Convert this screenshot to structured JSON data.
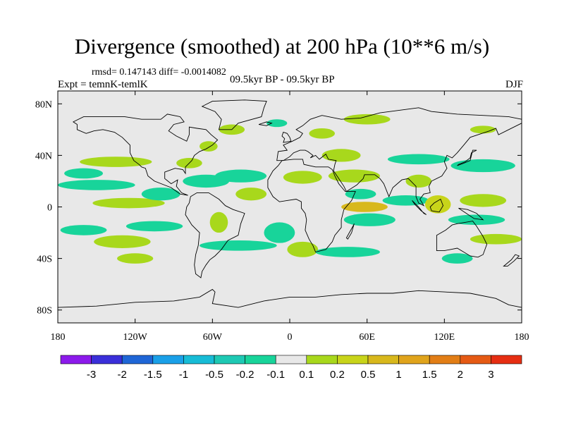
{
  "chart_data": {
    "type": "heatmap",
    "title": "Divergence (smoothed) at 200 hPa (10**6 m/s)",
    "stats_text": "rmsd= 0.147143 diff= -0.0014082",
    "experiment_text": "Expt = temnK-temlK",
    "period_text": "09.5kyr BP - 09.5kyr BP",
    "season_text": "DJF",
    "xlim": [
      -180,
      180
    ],
    "ylim": [
      -90,
      90
    ],
    "x_ticks": [
      {
        "value": -180,
        "label": "180"
      },
      {
        "value": -120,
        "label": "120W"
      },
      {
        "value": -60,
        "label": "60W"
      },
      {
        "value": 0,
        "label": "0"
      },
      {
        "value": 60,
        "label": "60E"
      },
      {
        "value": 120,
        "label": "120E"
      },
      {
        "value": 180,
        "label": "180"
      }
    ],
    "y_ticks": [
      {
        "value": 80,
        "label": "80N"
      },
      {
        "value": 40,
        "label": "40N"
      },
      {
        "value": 0,
        "label": "0"
      },
      {
        "value": -40,
        "label": "40S"
      },
      {
        "value": -80,
        "label": "80S"
      }
    ],
    "colorbar": {
      "colors": [
        "#8c1aeb",
        "#3a2fd9",
        "#1f66d6",
        "#1aa0e8",
        "#17bcd6",
        "#1ec9b4",
        "#18d49a",
        "#e8e8e8",
        "#a8d81c",
        "#c8d41a",
        "#d8b81c",
        "#e0a41c",
        "#e27e16",
        "#e55a14",
        "#e62e12"
      ],
      "labels": [
        "-3",
        "-2",
        "-1.5",
        "-1",
        "-0.5",
        "-0.2",
        "-0.1",
        "0.1",
        "0.2",
        "0.5",
        "1",
        "1.5",
        "2",
        "3"
      ]
    },
    "anomaly_regions": [
      {
        "lon": -150,
        "lat": 17,
        "rlon": 30,
        "rlat": 4,
        "value": -0.12
      },
      {
        "lon": -125,
        "lat": 3,
        "rlon": 28,
        "rlat": 4,
        "value": 0.13
      },
      {
        "lon": -160,
        "lat": -18,
        "rlon": 18,
        "rlat": 4,
        "value": -0.13
      },
      {
        "lon": -130,
        "lat": -27,
        "rlon": 22,
        "rlat": 5,
        "value": 0.12
      },
      {
        "lon": -135,
        "lat": 35,
        "rlon": 28,
        "rlat": 4,
        "value": 0.15
      },
      {
        "lon": -160,
        "lat": 26,
        "rlon": 15,
        "rlat": 4,
        "value": -0.13
      },
      {
        "lon": -100,
        "lat": 10,
        "rlon": 15,
        "rlat": 5,
        "value": -0.12
      },
      {
        "lon": -105,
        "lat": -15,
        "rlon": 22,
        "rlat": 4,
        "value": -0.14
      },
      {
        "lon": -65,
        "lat": 20,
        "rlon": 18,
        "rlat": 5,
        "value": -0.14
      },
      {
        "lon": -78,
        "lat": 34,
        "rlon": 10,
        "rlat": 4,
        "value": 0.14
      },
      {
        "lon": -63,
        "lat": 47,
        "rlon": 7,
        "rlat": 4,
        "value": 0.14
      },
      {
        "lon": -55,
        "lat": -12,
        "rlon": 7,
        "rlat": 8,
        "value": 0.15
      },
      {
        "lon": -38,
        "lat": 24,
        "rlon": 20,
        "rlat": 5,
        "value": -0.15
      },
      {
        "lon": -30,
        "lat": 10,
        "rlon": 12,
        "rlat": 5,
        "value": 0.13
      },
      {
        "lon": -40,
        "lat": -30,
        "rlon": 30,
        "rlat": 4,
        "value": -0.13
      },
      {
        "lon": -120,
        "lat": -40,
        "rlon": 14,
        "rlat": 4,
        "value": 0.13
      },
      {
        "lon": 10,
        "lat": 23,
        "rlon": 15,
        "rlat": 5,
        "value": 0.14
      },
      {
        "lon": -8,
        "lat": -20,
        "rlon": 12,
        "rlat": 8,
        "value": -0.13
      },
      {
        "lon": 10,
        "lat": -33,
        "rlon": 12,
        "rlat": 6,
        "value": 0.13
      },
      {
        "lon": 40,
        "lat": 40,
        "rlon": 15,
        "rlat": 5,
        "value": 0.13
      },
      {
        "lon": 50,
        "lat": 24,
        "rlon": 20,
        "rlat": 5,
        "value": 0.14
      },
      {
        "lon": 55,
        "lat": 10,
        "rlon": 12,
        "rlat": 4,
        "value": -0.14
      },
      {
        "lon": 58,
        "lat": 0,
        "rlon": 18,
        "rlat": 4,
        "value": 0.6
      },
      {
        "lon": 62,
        "lat": -10,
        "rlon": 20,
        "rlat": 5,
        "value": -0.14
      },
      {
        "lon": 45,
        "lat": -35,
        "rlon": 25,
        "rlat": 4,
        "value": -0.13
      },
      {
        "lon": 90,
        "lat": 5,
        "rlon": 18,
        "rlat": 4,
        "value": -0.14
      },
      {
        "lon": 100,
        "lat": 20,
        "rlon": 10,
        "rlat": 5,
        "value": 0.15
      },
      {
        "lon": 115,
        "lat": 2,
        "rlon": 10,
        "rlat": 7,
        "value": 0.3
      },
      {
        "lon": 100,
        "lat": 37,
        "rlon": 24,
        "rlat": 4,
        "value": -0.14
      },
      {
        "lon": 60,
        "lat": 68,
        "rlon": 18,
        "rlat": 4,
        "value": 0.13
      },
      {
        "lon": 150,
        "lat": 32,
        "rlon": 25,
        "rlat": 5,
        "value": -0.14
      },
      {
        "lon": 150,
        "lat": 5,
        "rlon": 18,
        "rlat": 5,
        "value": 0.15
      },
      {
        "lon": 145,
        "lat": -10,
        "rlon": 22,
        "rlat": 4,
        "value": -0.13
      },
      {
        "lon": 160,
        "lat": -25,
        "rlon": 20,
        "rlat": 4,
        "value": 0.14
      },
      {
        "lon": 130,
        "lat": -40,
        "rlon": 12,
        "rlat": 4,
        "value": -0.13
      },
      {
        "lon": 25,
        "lat": 57,
        "rlon": 10,
        "rlat": 4,
        "value": 0.13
      },
      {
        "lon": -45,
        "lat": 60,
        "rlon": 10,
        "rlat": 4,
        "value": 0.13
      },
      {
        "lon": -10,
        "lat": 65,
        "rlon": 8,
        "rlat": 3,
        "value": -0.12
      },
      {
        "lon": 150,
        "lat": 60,
        "rlon": 10,
        "rlat": 3,
        "value": 0.12
      }
    ]
  }
}
